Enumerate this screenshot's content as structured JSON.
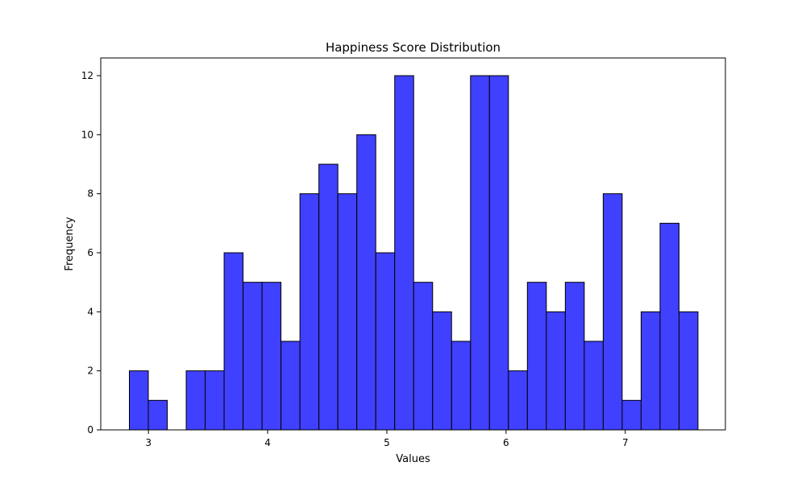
{
  "chart_data": {
    "type": "bar",
    "title": "Happiness Score Distribution",
    "xlabel": "Values",
    "ylabel": "Frequency",
    "xlim": [
      2.6,
      7.84
    ],
    "ylim": [
      0,
      12.6
    ],
    "xticks": [
      3,
      4,
      5,
      6,
      7
    ],
    "yticks": [
      0,
      2,
      4,
      6,
      8,
      10,
      12
    ],
    "bin_start": 2.84,
    "bin_width": 0.159,
    "bins": [
      {
        "x0": 2.84,
        "x1": 2.999,
        "count": 2
      },
      {
        "x0": 2.999,
        "x1": 3.158,
        "count": 1
      },
      {
        "x0": 3.158,
        "x1": 3.317,
        "count": 0
      },
      {
        "x0": 3.317,
        "x1": 3.476,
        "count": 2
      },
      {
        "x0": 3.476,
        "x1": 3.635,
        "count": 2
      },
      {
        "x0": 3.635,
        "x1": 3.794,
        "count": 6
      },
      {
        "x0": 3.794,
        "x1": 3.953,
        "count": 5
      },
      {
        "x0": 3.953,
        "x1": 4.112,
        "count": 5
      },
      {
        "x0": 4.112,
        "x1": 4.271,
        "count": 3
      },
      {
        "x0": 4.271,
        "x1": 4.43,
        "count": 8
      },
      {
        "x0": 4.43,
        "x1": 4.589,
        "count": 9
      },
      {
        "x0": 4.589,
        "x1": 4.748,
        "count": 8
      },
      {
        "x0": 4.748,
        "x1": 4.907,
        "count": 10
      },
      {
        "x0": 4.907,
        "x1": 5.066,
        "count": 6
      },
      {
        "x0": 5.066,
        "x1": 5.225,
        "count": 12
      },
      {
        "x0": 5.225,
        "x1": 5.384,
        "count": 5
      },
      {
        "x0": 5.384,
        "x1": 5.543,
        "count": 4
      },
      {
        "x0": 5.543,
        "x1": 5.702,
        "count": 3
      },
      {
        "x0": 5.702,
        "x1": 5.861,
        "count": 12
      },
      {
        "x0": 5.861,
        "x1": 6.02,
        "count": 12
      },
      {
        "x0": 6.02,
        "x1": 6.179,
        "count": 2
      },
      {
        "x0": 6.179,
        "x1": 6.338,
        "count": 5
      },
      {
        "x0": 6.338,
        "x1": 6.497,
        "count": 4
      },
      {
        "x0": 6.497,
        "x1": 6.656,
        "count": 5
      },
      {
        "x0": 6.656,
        "x1": 6.815,
        "count": 3
      },
      {
        "x0": 6.815,
        "x1": 6.974,
        "count": 8
      },
      {
        "x0": 6.974,
        "x1": 7.133,
        "count": 1
      },
      {
        "x0": 7.133,
        "x1": 7.292,
        "count": 4
      },
      {
        "x0": 7.292,
        "x1": 7.451,
        "count": 7
      },
      {
        "x0": 7.451,
        "x1": 7.61,
        "count": 4
      }
    ],
    "bar_color": "#4040ff",
    "edge_color": "#000000",
    "grid": false,
    "legend": "none"
  }
}
